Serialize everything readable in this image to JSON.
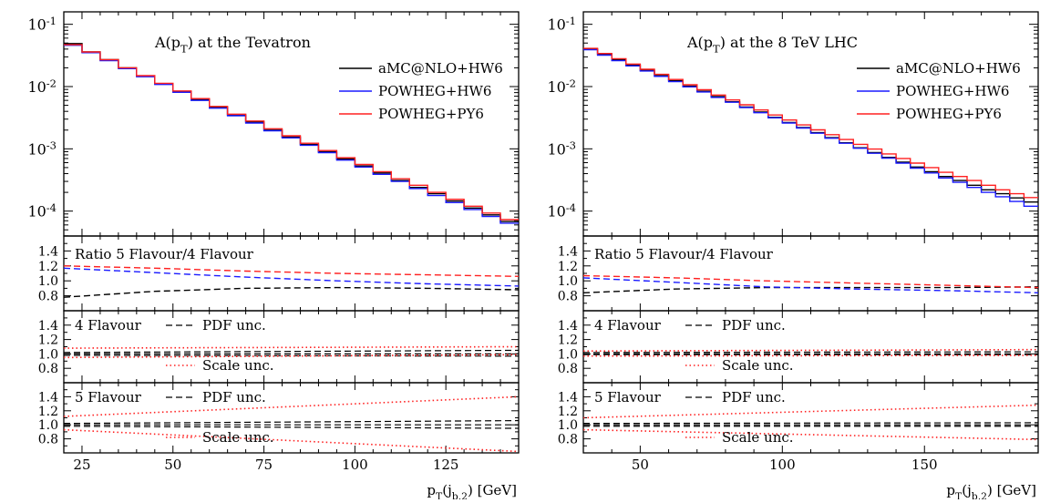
{
  "legend": {
    "entries": [
      {
        "label": "aMC@NLO+HW6",
        "color": "#000000"
      },
      {
        "label": "POWHEG+HW6",
        "color": "#1a1aff"
      },
      {
        "label": "POWHEG+PY6",
        "color": "#ff2020"
      }
    ]
  },
  "colors": {
    "black": "#000000",
    "blue": "#1a1aff",
    "red": "#ff2020"
  },
  "chart_data": [
    {
      "type": "line",
      "title": "A(p_T) at the Tevatron",
      "xlabel": "p_T(j_{b,2}) [GeV]",
      "xlim": [
        20,
        145
      ],
      "xticks": [
        25,
        50,
        75,
        100,
        125
      ],
      "main": {
        "ylim_log10": [
          -4.4,
          -0.8
        ],
        "yticks": [
          "10^{-1}",
          "10^{-2}",
          "10^{-3}",
          "10^{-4}"
        ],
        "bin_edges": [
          20,
          25,
          30,
          35,
          40,
          45,
          50,
          55,
          60,
          65,
          70,
          75,
          80,
          85,
          90,
          95,
          100,
          105,
          110,
          115,
          120,
          125,
          130,
          135,
          140,
          145
        ],
        "series": [
          {
            "name": "aMC@NLO+HW6",
            "color": "#000000",
            "values": [
              0.049,
              0.036,
              0.027,
              0.02,
              0.0148,
              0.0111,
              0.0083,
              0.0062,
              0.0047,
              0.0035,
              0.0027,
              0.002,
              0.00155,
              0.00118,
              0.0009,
              0.00069,
              0.00053,
              0.00041,
              0.00031,
              0.00024,
              0.00019,
              0.000145,
              0.000112,
              8.7e-05,
              6.8e-05
            ]
          },
          {
            "name": "POWHEG+HW6",
            "color": "#1a1aff",
            "values": [
              0.046,
              0.035,
              0.026,
              0.0194,
              0.0144,
              0.0108,
              0.0081,
              0.006,
              0.0045,
              0.0034,
              0.0026,
              0.00195,
              0.0015,
              0.00114,
              0.00087,
              0.00066,
              0.00051,
              0.00039,
              0.0003,
              0.00023,
              0.000178,
              0.000137,
              0.000106,
              8.2e-05,
              6.4e-05
            ]
          },
          {
            "name": "POWHEG+PY6",
            "color": "#ff2020",
            "values": [
              0.047,
              0.036,
              0.027,
              0.02,
              0.015,
              0.0113,
              0.0085,
              0.0064,
              0.0048,
              0.0036,
              0.0028,
              0.0021,
              0.00162,
              0.00123,
              0.00094,
              0.00072,
              0.00056,
              0.00043,
              0.00033,
              0.00026,
              0.0002,
              0.000155,
              0.00012,
              9.3e-05,
              7.3e-05
            ]
          }
        ]
      },
      "ratio": {
        "label": "Ratio 5 Flavour/4 Flavour",
        "ylim": [
          0.6,
          1.6
        ],
        "yticks": [
          "0.8",
          "1.0",
          "1.2",
          "1.4"
        ],
        "x": [
          20,
          45,
          70,
          95,
          120,
          145
        ],
        "series": [
          {
            "color": "#000000",
            "values": [
              0.78,
              0.86,
              0.9,
              0.91,
              0.9,
              0.88
            ]
          },
          {
            "color": "#1a1aff",
            "values": [
              1.17,
              1.11,
              1.05,
              1.0,
              0.96,
              0.93
            ]
          },
          {
            "color": "#ff2020",
            "values": [
              1.2,
              1.17,
              1.13,
              1.1,
              1.08,
              1.06
            ]
          }
        ]
      },
      "flav4": {
        "label": "4 Flavour",
        "pdf_label": "PDF unc.",
        "scale_label": "Scale unc.",
        "ylim": [
          0.6,
          1.6
        ],
        "yticks": [
          "0.8",
          "1.0",
          "1.2",
          "1.4"
        ],
        "x": [
          20,
          145
        ],
        "pdf": [
          [
            1.02,
            1.05
          ],
          [
            0.98,
            0.97
          ]
        ],
        "scale": [
          [
            1.08,
            1.1
          ],
          [
            0.95,
            0.99
          ]
        ]
      },
      "flav5": {
        "label": "5 Flavour",
        "pdf_label": "PDF unc.",
        "scale_label": "Scale unc.",
        "ylim": [
          0.6,
          1.6
        ],
        "yticks": [
          "0.8",
          "1.0",
          "1.2",
          "1.4"
        ],
        "x": [
          20,
          145
        ],
        "pdf": [
          [
            1.02,
            1.06
          ],
          [
            0.98,
            0.95
          ]
        ],
        "scale": [
          [
            1.12,
            1.4
          ],
          [
            0.93,
            0.62
          ]
        ]
      }
    },
    {
      "type": "line",
      "title": "A(p_T) at the 8 TeV LHC",
      "xlabel": "p_T(j_{b,2}) [GeV]",
      "xlim": [
        30,
        190
      ],
      "xticks": [
        50,
        100,
        150
      ],
      "main": {
        "ylim_log10": [
          -4.4,
          -0.8
        ],
        "yticks": [
          "10^{-1}",
          "10^{-2}",
          "10^{-3}",
          "10^{-4}"
        ],
        "bin_edges": [
          30,
          35,
          40,
          45,
          50,
          55,
          60,
          65,
          70,
          75,
          80,
          85,
          90,
          95,
          100,
          105,
          110,
          115,
          120,
          125,
          130,
          135,
          140,
          145,
          150,
          155,
          160,
          165,
          170,
          175,
          180,
          185,
          190
        ],
        "series": [
          {
            "name": "aMC@NLO+HW6",
            "color": "#000000",
            "values": [
              0.04,
              0.033,
              0.027,
              0.022,
              0.0183,
              0.015,
              0.0124,
              0.0102,
              0.0084,
              0.0069,
              0.0057,
              0.0047,
              0.0039,
              0.0032,
              0.00265,
              0.0022,
              0.00182,
              0.00151,
              0.00125,
              0.00104,
              0.00087,
              0.00073,
              0.00061,
              0.00051,
              0.00043,
              0.00036,
              0.00031,
              0.00026,
              0.00022,
              0.00019,
              0.000163,
              0.00014
            ]
          },
          {
            "name": "POWHEG+HW6",
            "color": "#1a1aff",
            "values": [
              0.039,
              0.032,
              0.026,
              0.0215,
              0.0178,
              0.0146,
              0.012,
              0.0099,
              0.0082,
              0.0067,
              0.0056,
              0.0046,
              0.0038,
              0.00315,
              0.0026,
              0.00216,
              0.00178,
              0.00148,
              0.00123,
              0.00102,
              0.00085,
              0.00071,
              0.00059,
              0.00049,
              0.00041,
              0.00034,
              0.00029,
              0.00024,
              0.0002,
              0.00017,
              0.000143,
              0.00012
            ]
          },
          {
            "name": "POWHEG+PY6",
            "color": "#ff2020",
            "values": [
              0.041,
              0.034,
              0.028,
              0.023,
              0.019,
              0.0157,
              0.013,
              0.0107,
              0.0089,
              0.0073,
              0.0061,
              0.0051,
              0.0042,
              0.0035,
              0.0029,
              0.00242,
              0.00202,
              0.00169,
              0.00141,
              0.00118,
              0.00099,
              0.00083,
              0.0007,
              0.00059,
              0.0005,
              0.00042,
              0.00036,
              0.00031,
              0.00026,
              0.00022,
              0.00019,
              0.000165
            ]
          }
        ]
      },
      "ratio": {
        "label": "Ratio 5 Flavour/4 Flavour",
        "ylim": [
          0.6,
          1.6
        ],
        "yticks": [
          "0.8",
          "1.0",
          "1.2",
          "1.4"
        ],
        "x": [
          30,
          62,
          94,
          126,
          158,
          190
        ],
        "series": [
          {
            "color": "#000000",
            "values": [
              0.84,
              0.89,
              0.91,
              0.91,
              0.91,
              0.92
            ]
          },
          {
            "color": "#1a1aff",
            "values": [
              1.04,
              0.98,
              0.92,
              0.89,
              0.87,
              0.84
            ]
          },
          {
            "color": "#ff2020",
            "values": [
              1.07,
              1.04,
              1.0,
              0.97,
              0.94,
              0.91
            ]
          }
        ]
      },
      "flav4": {
        "label": "4 Flavour",
        "pdf_label": "PDF unc.",
        "scale_label": "Scale unc.",
        "ylim": [
          0.6,
          1.6
        ],
        "yticks": [
          "0.8",
          "1.0",
          "1.2",
          "1.4"
        ],
        "x": [
          30,
          190
        ],
        "pdf": [
          [
            1.02,
            1.03
          ],
          [
            0.99,
            0.99
          ]
        ],
        "scale": [
          [
            1.04,
            1.06
          ],
          [
            0.97,
            0.98
          ]
        ]
      },
      "flav5": {
        "label": "5 Flavour",
        "pdf_label": "PDF unc.",
        "scale_label": "Scale unc.",
        "ylim": [
          0.6,
          1.6
        ],
        "yticks": [
          "0.8",
          "1.0",
          "1.2",
          "1.4"
        ],
        "x": [
          30,
          190
        ],
        "pdf": [
          [
            1.02,
            1.03
          ],
          [
            0.98,
            0.98
          ]
        ],
        "scale": [
          [
            1.1,
            1.28
          ],
          [
            0.93,
            0.79
          ]
        ]
      }
    }
  ]
}
